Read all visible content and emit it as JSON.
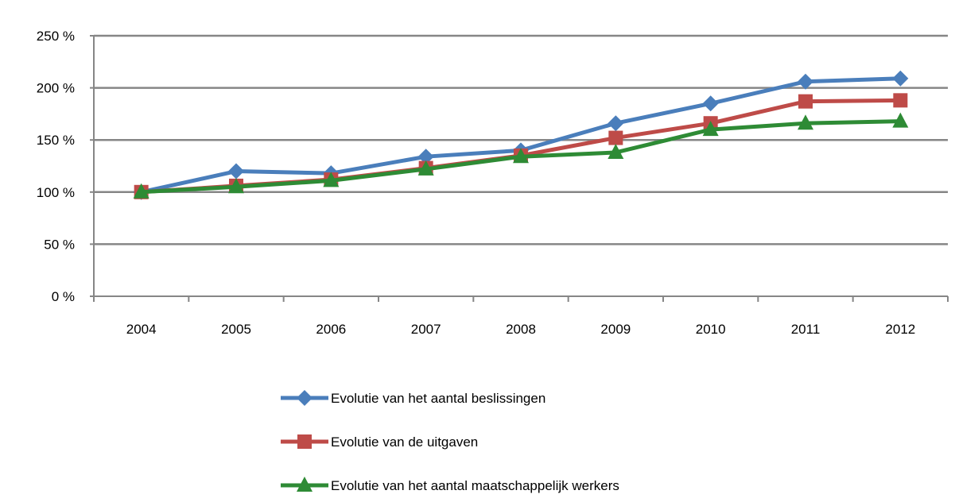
{
  "chart_data": {
    "type": "line",
    "title": "",
    "xlabel": "",
    "ylabel": "",
    "categories": [
      "2004",
      "2005",
      "2006",
      "2007",
      "2008",
      "2009",
      "2010",
      "2011",
      "2012"
    ],
    "ylim": [
      0,
      250
    ],
    "yticks": [
      0,
      50,
      100,
      150,
      200,
      250
    ],
    "ytick_labels": [
      "0 %",
      "50 %",
      "100 %",
      "150 %",
      "200 %",
      "250 %"
    ],
    "grid": true,
    "legend_position": "bottom",
    "series": [
      {
        "name": "Evolutie van het aantal beslissingen",
        "color": "#4a7ebb",
        "marker": "diamond",
        "values": [
          100,
          120,
          118,
          134,
          140,
          166,
          185,
          206,
          209
        ]
      },
      {
        "name": "Evolutie van de uitgaven",
        "color": "#be4b48",
        "marker": "square",
        "values": [
          100,
          106,
          112,
          123,
          135,
          152,
          166,
          187,
          188
        ]
      },
      {
        "name": "Evolutie van het aantal maatschappelijk werkers",
        "color": "#2e8b35",
        "marker": "triangle",
        "values": [
          100,
          105,
          111,
          122,
          134,
          138,
          160,
          166,
          168
        ]
      }
    ]
  }
}
